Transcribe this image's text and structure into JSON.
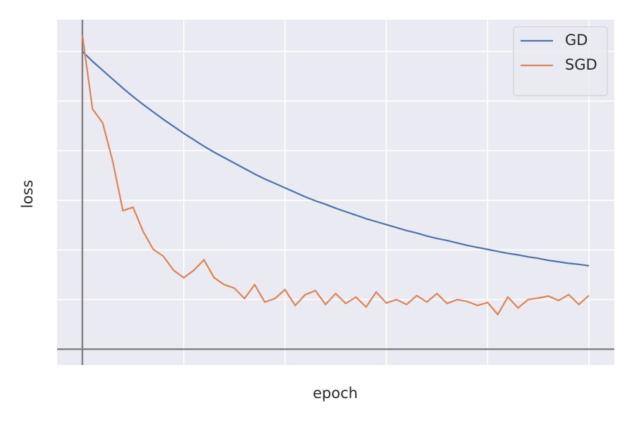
{
  "chart_data": {
    "type": "line",
    "xlabel": "epoch",
    "ylabel": "loss",
    "x": [
      0,
      5,
      10,
      15,
      20,
      25,
      30,
      35,
      40,
      45,
      50,
      55,
      60,
      65,
      70,
      75,
      80,
      85,
      90,
      95,
      100,
      105,
      110,
      115,
      120,
      125,
      130,
      135,
      140,
      145,
      150,
      155,
      160,
      165,
      170,
      175,
      180,
      185,
      190,
      195,
      200,
      205,
      210,
      215,
      220,
      225,
      230,
      235,
      240,
      245,
      250
    ],
    "series": [
      {
        "name": "GD",
        "color": "#4c72b0",
        "values": [
          6.0,
          5.8,
          5.62,
          5.44,
          5.26,
          5.09,
          4.93,
          4.78,
          4.63,
          4.49,
          4.35,
          4.22,
          4.09,
          3.97,
          3.86,
          3.75,
          3.64,
          3.53,
          3.43,
          3.34,
          3.25,
          3.16,
          3.07,
          2.99,
          2.92,
          2.84,
          2.77,
          2.7,
          2.63,
          2.57,
          2.51,
          2.45,
          2.39,
          2.34,
          2.28,
          2.23,
          2.19,
          2.14,
          2.09,
          2.05,
          2.01,
          1.97,
          1.93,
          1.9,
          1.86,
          1.83,
          1.79,
          1.76,
          1.73,
          1.71,
          1.68
        ]
      },
      {
        "name": "SGD",
        "color": "#dd8452",
        "values": [
          6.33,
          4.84,
          4.56,
          3.78,
          2.79,
          2.86,
          2.37,
          2.01,
          1.87,
          1.59,
          1.44,
          1.59,
          1.8,
          1.44,
          1.3,
          1.23,
          1.02,
          1.3,
          0.95,
          1.02,
          1.2,
          0.88,
          1.1,
          1.18,
          0.9,
          1.12,
          0.92,
          1.05,
          0.85,
          1.15,
          0.93,
          1.0,
          0.9,
          1.08,
          0.95,
          1.12,
          0.92,
          1.0,
          0.96,
          0.88,
          0.94,
          0.7,
          1.05,
          0.83,
          1.0,
          1.03,
          1.07,
          0.98,
          1.1,
          0.9,
          1.08
        ]
      }
    ],
    "xlim": [
      -12.5,
      262.5
    ],
    "ylim": [
      -0.32,
      6.64
    ],
    "xticks": [
      0,
      50,
      100,
      150,
      200,
      250
    ],
    "yticks": [
      0,
      1,
      2,
      3,
      4,
      5,
      6
    ],
    "tick_labels": false,
    "grid": true,
    "zero_lines": true,
    "legend": "upper right"
  }
}
